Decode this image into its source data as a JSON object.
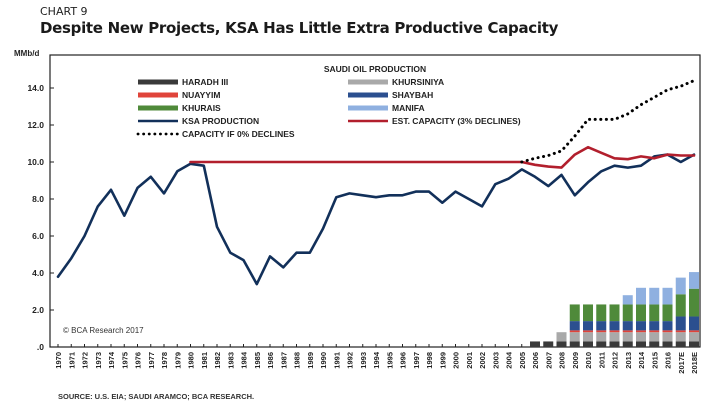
{
  "chart_data": {
    "type": "line",
    "label": "CHART 9",
    "title": "Despite New Projects, KSA Has Little Extra Productive Capacity",
    "ylabel": "MMb/d",
    "xlabel": "",
    "ylim": [
      0,
      15.5
    ],
    "yticks": [
      0,
      2,
      4,
      6,
      8,
      10,
      12,
      14
    ],
    "ytick_labels": [
      ".0",
      "2.0",
      "4.0",
      "6.0",
      "8.0",
      "10.0",
      "12.0",
      "14.0"
    ],
    "grid": false,
    "legend_title": "SAUDI OIL PRODUCTION",
    "legend_position": "top-left",
    "copyright": "© BCA Research 2017",
    "source": "SOURCE: U.S. EIA; SAUDI ARAMCO; BCA RESEARCH.",
    "categories": [
      "1970",
      "1971",
      "1972",
      "1973",
      "1974",
      "1975",
      "1976",
      "1977",
      "1978",
      "1979",
      "1980",
      "1981",
      "1982",
      "1983",
      "1984",
      "1985",
      "1986",
      "1987",
      "1988",
      "1989",
      "1990",
      "1991",
      "1992",
      "1993",
      "1994",
      "1995",
      "1996",
      "1997",
      "1998",
      "1999",
      "2000",
      "2001",
      "2002",
      "2003",
      "2004",
      "2005",
      "2006",
      "2007",
      "2008",
      "2009",
      "2010",
      "2011",
      "2012",
      "2013",
      "2014",
      "2015",
      "2016",
      "2017E",
      "2018E"
    ],
    "stacked_bars": {
      "start_index": 36,
      "series": [
        {
          "name": "HARADH III",
          "color": "#3a3a3a",
          "values": [
            0.3,
            0.3,
            0.3,
            0.3,
            0.3,
            0.3,
            0.3,
            0.3,
            0.3,
            0.3,
            0.3,
            0.3,
            0.3
          ]
        },
        {
          "name": "KHURSINIYA",
          "color": "#a9a9a9",
          "values": [
            0,
            0,
            0.5,
            0.5,
            0.5,
            0.5,
            0.5,
            0.5,
            0.5,
            0.5,
            0.5,
            0.5,
            0.5
          ]
        },
        {
          "name": "NUAYYIM",
          "color": "#e0443a",
          "values": [
            0,
            0,
            0,
            0.1,
            0.1,
            0.1,
            0.1,
            0.1,
            0.1,
            0.1,
            0.1,
            0.1,
            0.1
          ]
        },
        {
          "name": "SHAYBAH",
          "color": "#2b4f8f",
          "values": [
            0,
            0,
            0,
            0.5,
            0.5,
            0.5,
            0.5,
            0.5,
            0.5,
            0.5,
            0.5,
            0.75,
            0.75
          ]
        },
        {
          "name": "KHURAIS",
          "color": "#4f8a3a",
          "values": [
            0,
            0,
            0,
            0.9,
            0.9,
            0.9,
            0.9,
            0.9,
            0.9,
            0.9,
            0.9,
            1.2,
            1.5
          ]
        },
        {
          "name": "MANIFA",
          "color": "#8fb0e0",
          "values": [
            0,
            0,
            0,
            0,
            0,
            0,
            0,
            0.5,
            0.9,
            0.9,
            0.9,
            0.9,
            0.9
          ]
        }
      ]
    },
    "series": [
      {
        "name": "KSA PRODUCTION",
        "color": "#12305a",
        "style": "solid",
        "values": [
          3.8,
          4.8,
          6.0,
          7.6,
          8.5,
          7.1,
          8.6,
          9.2,
          8.3,
          9.5,
          9.9,
          9.8,
          6.5,
          5.1,
          4.7,
          3.4,
          4.9,
          4.3,
          5.1,
          5.1,
          6.4,
          8.1,
          8.3,
          8.2,
          8.1,
          8.2,
          8.2,
          8.4,
          8.4,
          7.8,
          8.4,
          8.0,
          7.6,
          8.8,
          9.1,
          9.6,
          9.2,
          8.7,
          9.3,
          8.2,
          8.9,
          9.5,
          9.8,
          9.7,
          9.8,
          10.3,
          10.4,
          10.0,
          10.4
        ]
      },
      {
        "name": "EST. CAPACITY (3% DECLINES)",
        "color": "#b21f2d",
        "style": "solid",
        "start_index": 10,
        "values": [
          10.0,
          10.0,
          10.0,
          10.0,
          10.0,
          10.0,
          10.0,
          10.0,
          10.0,
          10.0,
          10.0,
          10.0,
          10.0,
          10.0,
          10.0,
          10.0,
          10.0,
          10.0,
          10.0,
          10.0,
          10.0,
          10.0,
          10.0,
          10.0,
          10.0,
          10.0,
          9.85,
          9.75,
          9.7,
          10.4,
          10.8,
          10.5,
          10.2,
          10.15,
          10.3,
          10.2,
          10.4,
          10.35,
          10.35
        ]
      },
      {
        "name": "CAPACITY IF 0% DECLINES",
        "color": "#000000",
        "style": "dotted",
        "start_index": 35,
        "values": [
          10.0,
          10.2,
          10.35,
          10.6,
          11.4,
          12.3,
          12.3,
          12.3,
          12.6,
          13.1,
          13.5,
          13.9,
          14.1,
          14.4
        ]
      }
    ],
    "legend": [
      {
        "name": "HARADH III",
        "color": "#3a3a3a",
        "style": "bar"
      },
      {
        "name": "KHURSINIYA",
        "color": "#a9a9a9",
        "style": "bar"
      },
      {
        "name": "NUAYYIM",
        "color": "#e0443a",
        "style": "bar"
      },
      {
        "name": "SHAYBAH",
        "color": "#2b4f8f",
        "style": "bar"
      },
      {
        "name": "KHURAIS",
        "color": "#4f8a3a",
        "style": "bar"
      },
      {
        "name": "MANIFA",
        "color": "#8fb0e0",
        "style": "bar"
      },
      {
        "name": "KSA PRODUCTION",
        "color": "#12305a",
        "style": "line"
      },
      {
        "name": "EST. CAPACITY (3% DECLINES)",
        "color": "#b21f2d",
        "style": "line"
      },
      {
        "name": "CAPACITY IF 0% DECLINES",
        "color": "#000000",
        "style": "dotted"
      }
    ]
  }
}
